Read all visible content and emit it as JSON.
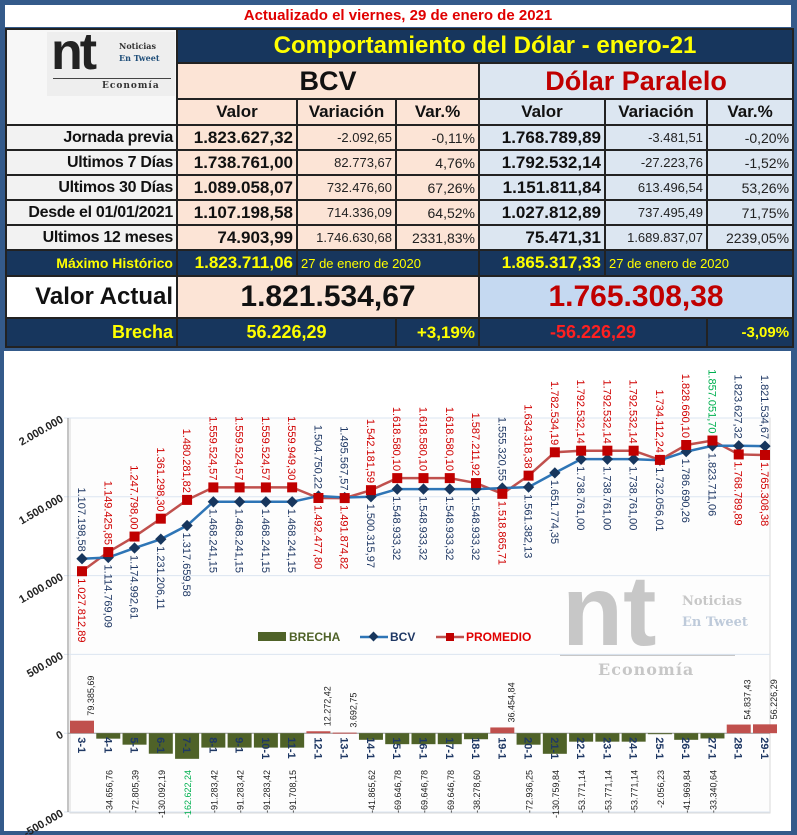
{
  "header": {
    "updated": "Actualizado el  viernes, 29 de enero de 2021",
    "title": "Comportamiento del Dólar -  enero-21"
  },
  "logo": {
    "mark": "nt",
    "line1": "Noticias",
    "line2": "En Tweet",
    "line3": "Economía"
  },
  "bcv_label": "BCV",
  "paralelo_label": "Dólar Paralelo",
  "columns": [
    "Valor",
    "Variación",
    "Var.%"
  ],
  "rows": [
    {
      "label": "Jornada previa",
      "bcv": [
        "1.823.627,32",
        "-2.092,65",
        "-0,11%"
      ],
      "par": [
        "1.768.789,89",
        "-3.481,51",
        "-0,20%"
      ]
    },
    {
      "label": "Ultimos 7 Días",
      "bcv": [
        "1.738.761,00",
        "82.773,67",
        "4,76%"
      ],
      "par": [
        "1.792.532,14",
        "-27.223,76",
        "-1,52%"
      ]
    },
    {
      "label": "Ultimos 30 Días",
      "bcv": [
        "1.089.058,07",
        "732.476,60",
        "67,26%"
      ],
      "par": [
        "1.151.811,84",
        "613.496,54",
        "53,26%"
      ]
    },
    {
      "label": "Desde el 01/01/2021",
      "bcv": [
        "1.107.198,58",
        "714.336,09",
        "64,52%"
      ],
      "par": [
        "1.027.812,89",
        "737.495,49",
        "71,75%"
      ]
    },
    {
      "label": "Ultimos 12 meses",
      "bcv": [
        "74.903,99",
        "1.746.630,68",
        "2331,83%"
      ],
      "par": [
        "75.471,31",
        "1.689.837,07",
        "2239,05%"
      ]
    }
  ],
  "maximo": {
    "label": "Máximo Histórico",
    "bcv_value": "1.823.711,06",
    "bcv_date": "27 de enero de 2020",
    "par_value": "1.865.317,33",
    "par_date": "27 de enero de 2020"
  },
  "actual": {
    "label": "Valor Actual",
    "bcv": "1.821.534,67",
    "par": "1.765.308,38"
  },
  "brecha": {
    "label": "Brecha",
    "bcv_value": "56.226,29",
    "bcv_pct": "+3,19%",
    "par_value": "-56.226,29",
    "par_pct": "-3,09%"
  },
  "colors": {
    "navy": "#17365d",
    "bcv": "#2e75b6",
    "promedio": "#c0504d",
    "brecha_neg": "#4f6228",
    "brecha_pos": "#c0504d",
    "highlight": "#00b050"
  },
  "chart_data": {
    "type": "bar+line",
    "categories": [
      "3-1",
      "4-1",
      "5-1",
      "6-1",
      "7-1",
      "8-1",
      "9-1",
      "10-1",
      "11-1",
      "12-1",
      "13-1",
      "14-1",
      "15-1",
      "16-1",
      "17-1",
      "18-1",
      "19-1",
      "20-1",
      "21-1",
      "22-1",
      "23-1",
      "24-1",
      "25-1",
      "26-1",
      "27-1",
      "28-1",
      "29-1"
    ],
    "ylim": [
      -500000,
      2000000
    ],
    "yticks": [
      "-500.000",
      "0",
      "500.000",
      "1.000.000",
      "1.500.000",
      "2.000.000"
    ],
    "grid": true,
    "legend": "middle",
    "series": [
      {
        "name": "BRECHA",
        "kind": "bar",
        "values": [
          79385.69,
          -34656.76,
          -72805.39,
          -130092.19,
          -162622.24,
          -91283.42,
          -91283.42,
          -91283.42,
          -91708.15,
          12272.42,
          3692.75,
          -41865.62,
          -69646.78,
          -69646.78,
          -69646.78,
          -38278.6,
          36454.84,
          -72936.25,
          -130759.84,
          -53771.14,
          -53771.14,
          -53771.14,
          -2056.23,
          -41969.84,
          -33340.64,
          54837.43,
          56226.29
        ],
        "labels": [
          "79.385,69",
          "-34.656,76",
          "-72.805,39",
          "-130.092,19",
          "-162.622,24",
          "-91.283,42",
          "-91.283,42",
          "-91.283,42",
          "-91.708,15",
          "12.272,42",
          "3.692,75",
          "-41.865,62",
          "-69.646,78",
          "-69.646,78",
          "-69.646,78",
          "-38.278,60",
          "36.454,84",
          "-72.936,25",
          "-130.759,84",
          "-53.771,14",
          "-53.771,14",
          "-53.771,14",
          "-2.056,23",
          "-41.969,84",
          "-33.340,64",
          "54.837,43",
          "56.226,29"
        ]
      },
      {
        "name": "BCV",
        "kind": "line",
        "values": [
          1107198.58,
          1114769.09,
          1174992.61,
          1231206.11,
          1317659.58,
          1468241.15,
          1468241.15,
          1468241.15,
          1468241.15,
          1504750.22,
          1495567.57,
          1500315.97,
          1548933.32,
          1548933.32,
          1548933.32,
          1548933.32,
          1555320.55,
          1561382.13,
          1651774.35,
          1738761.0,
          1738761.0,
          1738761.0,
          1732056.01,
          1786690.26,
          1823711.06,
          1823627.32,
          1821534.67
        ],
        "labels": [
          "1.107.198,58",
          "1.114.769,09",
          "1.174.992,61",
          "1.231.206,11",
          "1.317.659,58",
          "1.468.241,15",
          "1.468.241,15",
          "1.468.241,15",
          "1.468.241,15",
          "1.504.750,22",
          "1.495.567,57",
          "1.500.315,97",
          "1.548.933,32",
          "1.548.933,32",
          "1.548.933,32",
          "1.548.933,32",
          "1.555.320,55",
          "1.561.382,13",
          "1.651.774,35",
          "1.738.761,00",
          "1.738.761,00",
          "1.738.761,00",
          "1.732.056,01",
          "1.786.690,26",
          "1.823.711,06",
          "1.823.627,32",
          "1.821.534,67"
        ]
      },
      {
        "name": "PROMEDIO",
        "kind": "line",
        "values": [
          1027812.89,
          1149425.85,
          1247798.0,
          1361298.3,
          1480281.82,
          1559524.57,
          1559524.57,
          1559524.57,
          1559949.3,
          1492477.8,
          1491874.82,
          1542181.59,
          1618580.1,
          1618580.1,
          1618580.1,
          1587211.92,
          1518865.71,
          1634318.38,
          1782534.19,
          1792532.14,
          1792532.14,
          1792532.14,
          1734112.24,
          1828660.1,
          1857051.7,
          1768789.89,
          1765308.38
        ],
        "labels": [
          "1.027.812,89",
          "1.149.425,85",
          "1.247.798,00",
          "1.361.298,30",
          "1.480.281,82",
          "1.559.524,57",
          "1.559.524,57",
          "1.559.524,57",
          "1.559.949,30",
          "1.492.477,80",
          "1.491.874,82",
          "1.542.181,59",
          "1.618.580,10",
          "1.618.580,10",
          "1.618.580,10",
          "1.587.211,92",
          "1.518.865,71",
          "1.634.318,38",
          "1.782.534,19",
          "1.792.532,14",
          "1.792.532,14",
          "1.792.532,14",
          "1.734.112,24",
          "1.828.660,10",
          "1.857.051,70",
          "1.768.789,89",
          "1.765.308,38"
        ]
      }
    ]
  }
}
